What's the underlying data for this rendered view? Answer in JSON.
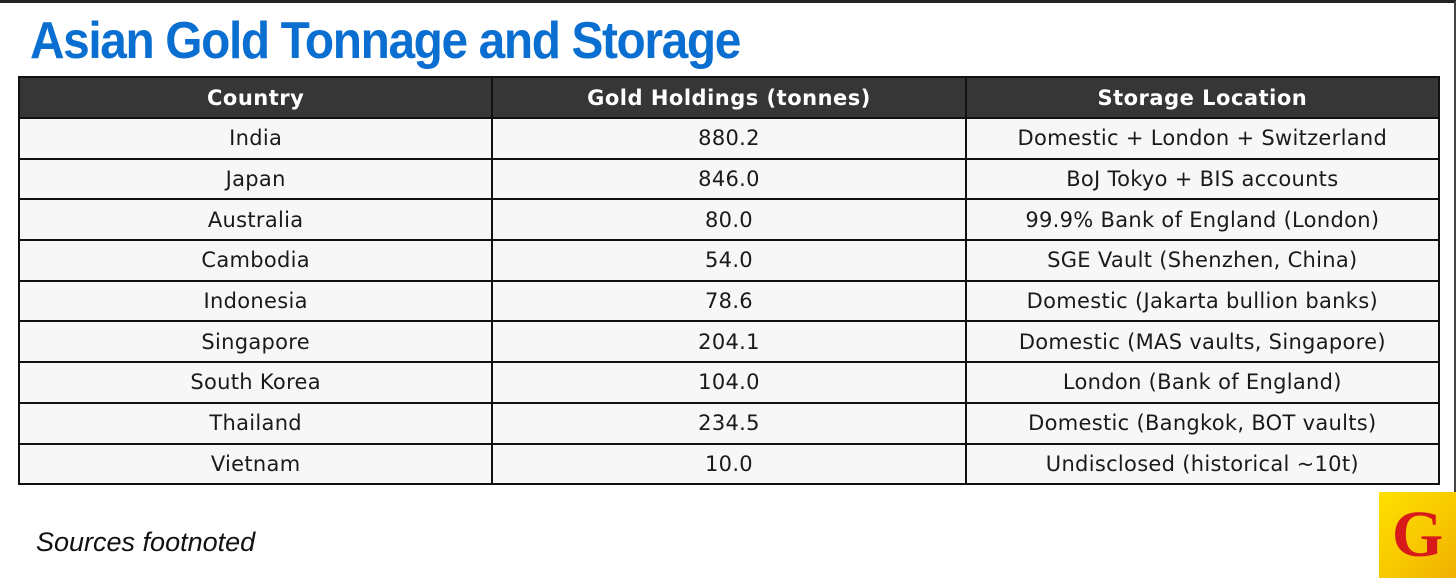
{
  "header": {
    "title": "Asian Gold Tonnage and Storage"
  },
  "table": {
    "columns": [
      "Country",
      "Gold Holdings (tonnes)",
      "Storage Location"
    ],
    "rows": [
      [
        "India",
        "880.2",
        "Domestic + London + Switzerland"
      ],
      [
        "Japan",
        "846.0",
        "BoJ Tokyo + BIS accounts"
      ],
      [
        "Australia",
        "80.0",
        "99.9% Bank of England (London)"
      ],
      [
        "Cambodia",
        "54.0",
        "SGE Vault (Shenzhen, China)"
      ],
      [
        "Indonesia",
        "78.6",
        "Domestic (Jakarta bullion banks)"
      ],
      [
        "Singapore",
        "204.1",
        "Domestic (MAS vaults, Singapore)"
      ],
      [
        "South Korea",
        "104.0",
        "London (Bank of England)"
      ],
      [
        "Thailand",
        "234.5",
        "Domestic (Bangkok, BOT vaults)"
      ],
      [
        "Vietnam",
        "10.0",
        "Undisclosed (historical ~10t)"
      ]
    ]
  },
  "footer": {
    "note": "Sources footnoted"
  },
  "logo": {
    "letter": "G"
  }
}
